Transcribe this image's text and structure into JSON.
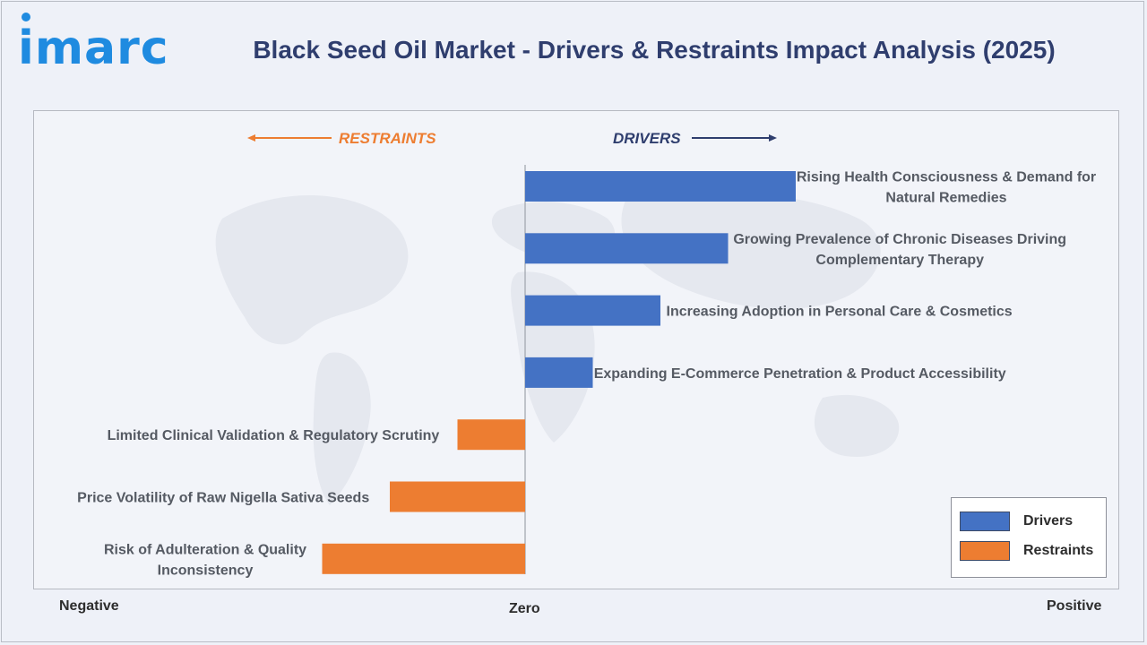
{
  "header": {
    "logo_text": "imarc",
    "title": "Black Seed Oil Market - Drivers & Restraints Impact Analysis (2025)"
  },
  "colors": {
    "drivers": "#4472c4",
    "restraints": "#ed7d31",
    "title": "#2f3e6e",
    "logo": "#1f8be0"
  },
  "chart_data": {
    "type": "bar",
    "orientation": "horizontal",
    "direction_labels": {
      "restraints": "RESTRAINTS",
      "drivers": "DRIVERS"
    },
    "axis_labels": {
      "negative": "Negative",
      "zero": "Zero",
      "positive": "Positive"
    },
    "categories": [
      "Rising Health Consciousness & Demand for Natural Remedies",
      "Growing Prevalence of Chronic Diseases Driving Complementary Therapy",
      "Increasing Adoption in Personal Care & Cosmetics",
      "Expanding E-Commerce Penetration & Product Accessibility",
      "Limited Clinical Validation & Regulatory Scrutiny",
      "Price Volatility of Raw Nigella Sativa Seeds",
      "Risk of Adulteration & Quality Inconsistency"
    ],
    "label_lines": [
      [
        "Rising Health Consciousness & Demand for",
        "Natural Remedies"
      ],
      [
        "Growing Prevalence of Chronic Diseases Driving",
        "Complementary Therapy"
      ],
      [
        "Increasing Adoption in Personal Care & Cosmetics"
      ],
      [
        "Expanding E-Commerce Penetration & Product Accessibility"
      ],
      [
        "Limited Clinical Validation & Regulatory Scrutiny"
      ],
      [
        "Price Volatility of Raw Nigella Sativa Seeds"
      ],
      [
        "Risk of Adulteration & Quality",
        "Inconsistency"
      ]
    ],
    "series": [
      {
        "name": "Drivers",
        "values": [
          4,
          3,
          2,
          1,
          0,
          0,
          0
        ]
      },
      {
        "name": "Restraints",
        "values": [
          0,
          0,
          0,
          0,
          -1,
          -2,
          -3
        ]
      }
    ],
    "legend_position": "bottom-right",
    "grid": false
  }
}
